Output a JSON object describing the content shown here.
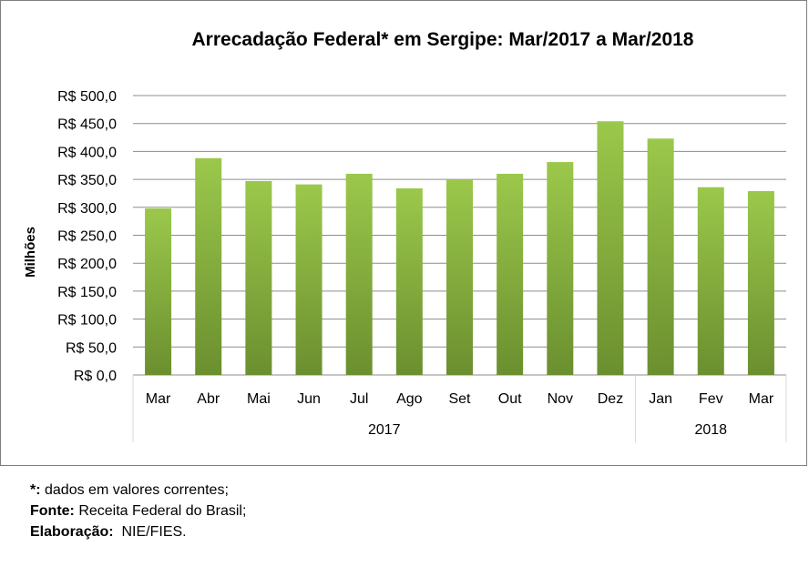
{
  "chart_data": {
    "type": "bar",
    "title": "Arrecadação Federal* em Sergipe: Mar/2017 a Mar/2018",
    "ylabel": "Milhões",
    "xlabel": "",
    "ylim": [
      0,
      500
    ],
    "ytick_values": [
      0,
      50,
      100,
      150,
      200,
      250,
      300,
      350,
      400,
      450,
      500
    ],
    "ytick_labels": [
      "R$ 0,0",
      "R$ 50,0",
      "R$ 100,0",
      "R$ 150,0",
      "R$ 200,0",
      "R$ 250,0",
      "R$ 300,0",
      "R$ 350,0",
      "R$ 400,0",
      "R$ 450,0",
      "R$ 500,0"
    ],
    "categories": [
      "Mar",
      "Abr",
      "Mai",
      "Jun",
      "Jul",
      "Ago",
      "Set",
      "Out",
      "Nov",
      "Dez",
      "Jan",
      "Fev",
      "Mar"
    ],
    "values": [
      298,
      388,
      347,
      341,
      360,
      334,
      350,
      360,
      381,
      454,
      423,
      336,
      329
    ],
    "groups": [
      {
        "label": "2017",
        "count": 10
      },
      {
        "label": "2018",
        "count": 3
      }
    ],
    "grid": true,
    "legend": "none",
    "bar_color_top": "#9bc84b",
    "bar_color_bottom": "#6b8f2f",
    "gridline_color": "#8c8c8c"
  },
  "notes": [
    {
      "label": "*:",
      "text": " dados em valores correntes;"
    },
    {
      "label": "Fonte:",
      "text": " Receita Federal do Brasil;"
    },
    {
      "label": "Elaboração:",
      "text": "  NIE/FIES."
    }
  ]
}
